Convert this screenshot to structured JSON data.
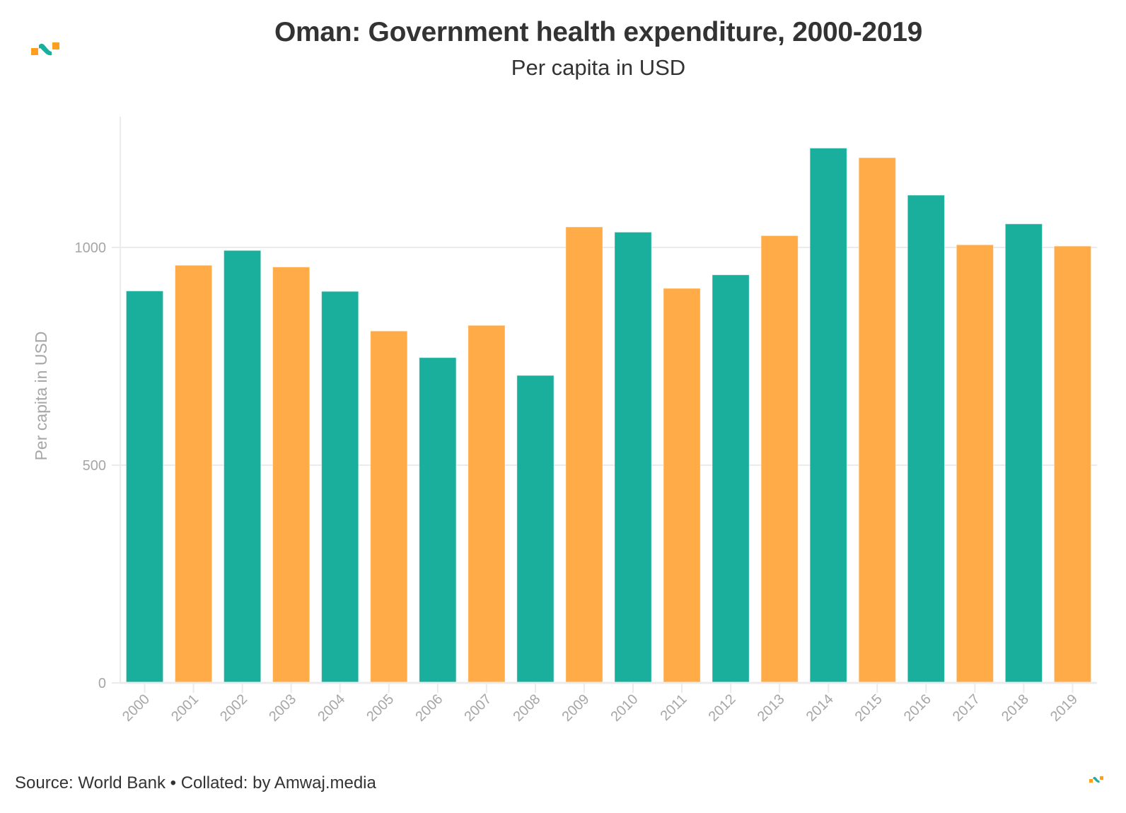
{
  "header": {
    "title": "Oman: Government health expenditure, 2000-2019",
    "subtitle": "Per capita in USD"
  },
  "footer": {
    "source_text": "Source: World Bank • Collated: by Amwaj.media"
  },
  "brand": {
    "logo_icon": "amwaj-logo-icon",
    "colors": {
      "teal": "#1aaf9c",
      "orange": "#ffab47"
    }
  },
  "chart_data": {
    "type": "bar",
    "title": "Oman: Government health expenditure, 2000-2019",
    "subtitle": "Per capita in USD",
    "xlabel": "",
    "ylabel": "Per capita in USD",
    "categories": [
      "2000",
      "2001",
      "2002",
      "2003",
      "2004",
      "2005",
      "2006",
      "2007",
      "2008",
      "2009",
      "2010",
      "2011",
      "2012",
      "2013",
      "2014",
      "2015",
      "2016",
      "2017",
      "2018",
      "2019"
    ],
    "values": [
      900,
      959,
      993,
      955,
      899,
      808,
      747,
      821,
      706,
      1047,
      1035,
      906,
      937,
      1027,
      1228,
      1206,
      1120,
      1006,
      1054,
      1003
    ],
    "bar_colors": [
      "#1aaf9c",
      "#ffab47",
      "#1aaf9c",
      "#ffab47",
      "#1aaf9c",
      "#ffab47",
      "#1aaf9c",
      "#ffab47",
      "#1aaf9c",
      "#ffab47",
      "#1aaf9c",
      "#ffab47",
      "#1aaf9c",
      "#ffab47",
      "#1aaf9c",
      "#ffab47",
      "#1aaf9c",
      "#ffab47",
      "#1aaf9c",
      "#ffab47"
    ],
    "ylim": [
      0,
      1300
    ],
    "yticks": [
      0,
      500,
      1000
    ],
    "grid": true,
    "legend": "none",
    "source": "Source: World Bank • Collated: by Amwaj.media"
  }
}
